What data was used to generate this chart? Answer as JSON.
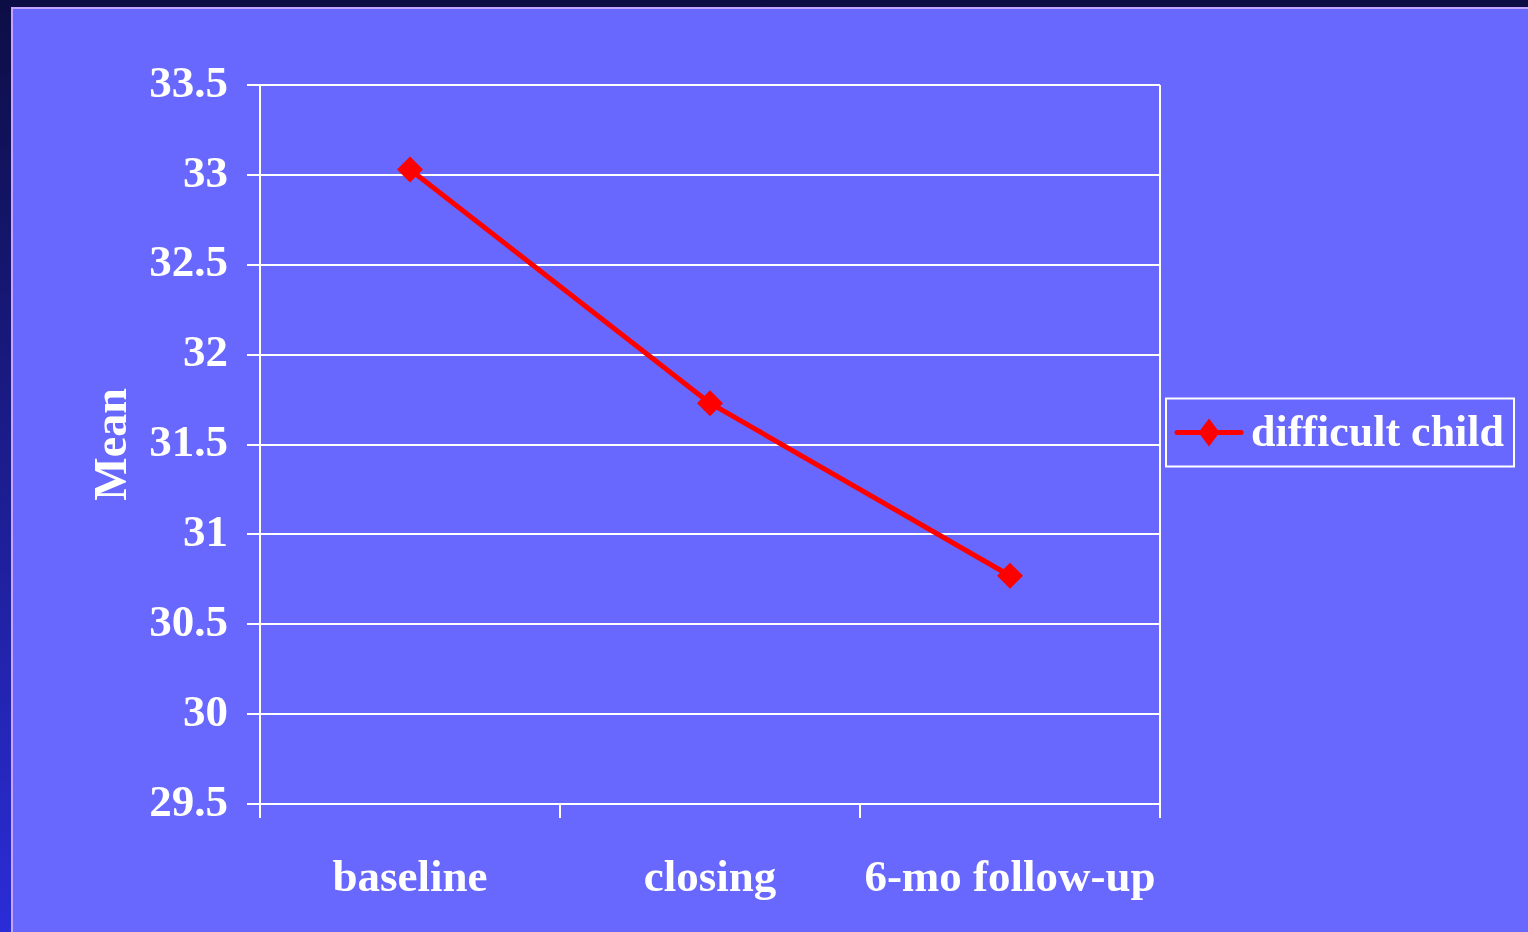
{
  "chart_data": {
    "type": "line",
    "ylabel": "Mean",
    "categories": [
      "baseline",
      "closing",
      "6-mo follow-up"
    ],
    "series": [
      {
        "name": "difficult child",
        "color": "#ff0000",
        "values": [
          33.03,
          31.73,
          30.77
        ]
      }
    ],
    "ylim": [
      29.5,
      33.5
    ],
    "yticks": [
      29.5,
      30,
      30.5,
      31,
      31.5,
      32,
      32.5,
      33,
      33.5
    ],
    "grid": "y",
    "legend": "right",
    "marker": "diamond",
    "line_style": "solid"
  }
}
